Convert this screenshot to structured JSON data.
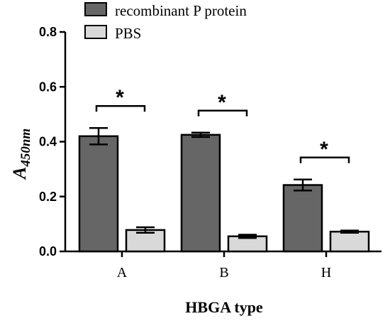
{
  "chart_data": {
    "type": "bar",
    "categories": [
      "A",
      "B",
      "H"
    ],
    "series": [
      {
        "name": "recombinant P protein",
        "values": [
          0.42,
          0.425,
          0.242
        ],
        "errors": [
          0.03,
          0.008,
          0.02
        ],
        "color": "#666666"
      },
      {
        "name": "PBS",
        "values": [
          0.078,
          0.055,
          0.072
        ],
        "errors": [
          0.01,
          0.006,
          0.004
        ],
        "color": "#d9d9d9"
      }
    ],
    "xlabel": "HBGA type",
    "ylabel_main": "A",
    "ylabel_sub": "450nm",
    "ylim": [
      0,
      0.8
    ],
    "yticks": [
      "0.0",
      "0.2",
      "0.4",
      "0.6",
      "0.8"
    ],
    "significance": [
      {
        "category": "A",
        "label": "*"
      },
      {
        "category": "B",
        "label": "*"
      },
      {
        "category": "H",
        "label": "*"
      }
    ],
    "legend_position": "top"
  }
}
